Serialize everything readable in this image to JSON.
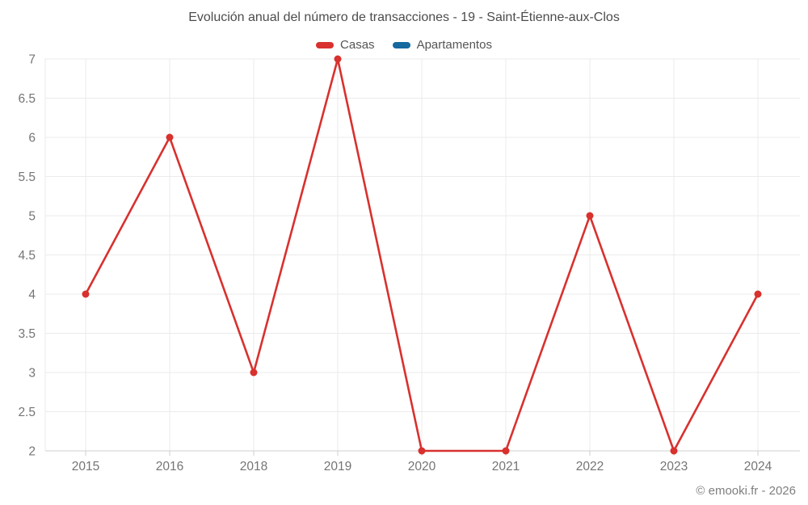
{
  "chart": {
    "title": "Evolución anual del número de transacciones - 19 - Saint-Étienne-aux-Clos"
  },
  "chart_data": {
    "type": "line",
    "title": "Evolución anual del número de transacciones - 19 - Saint-Étienne-aux-Clos",
    "categories": [
      "2015",
      "2016",
      "2018",
      "2019",
      "2020",
      "2021",
      "2022",
      "2023",
      "2024"
    ],
    "series": [
      {
        "name": "Casas",
        "color": "#d8312e",
        "values": [
          4,
          6,
          3,
          7,
          2,
          2,
          5,
          2,
          4
        ]
      },
      {
        "name": "Apartamentos",
        "color": "#15699e",
        "values": []
      }
    ],
    "xlabel": "",
    "ylabel": "",
    "ylim": [
      2,
      7
    ],
    "ytick_step": 0.5,
    "grid": true,
    "legend_position": "top"
  },
  "colors": {
    "gridline": "#ebebeb",
    "axis_line": "#cfcfcf",
    "tick_label": "#757575"
  },
  "footer": {
    "copyright": "© emooki.fr - 2026"
  }
}
